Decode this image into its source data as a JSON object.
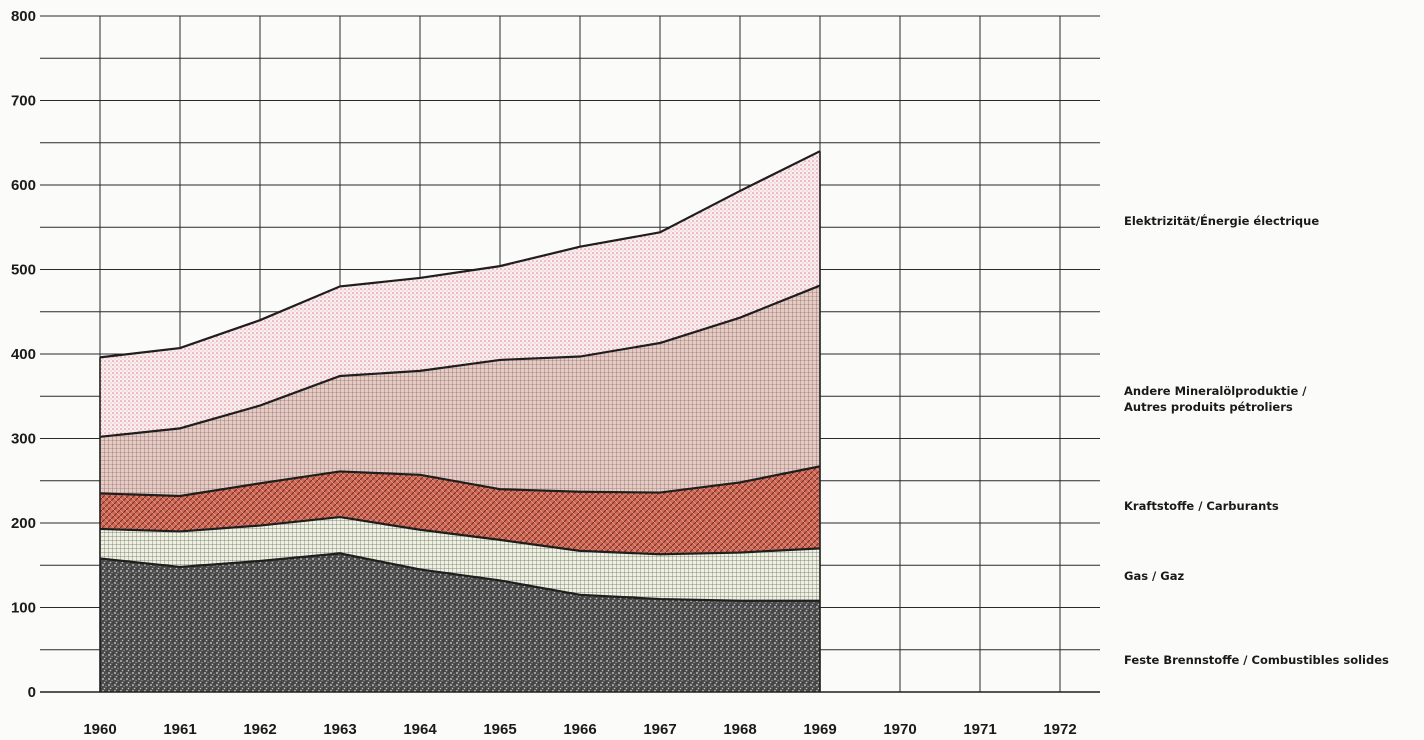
{
  "chart_data": {
    "type": "area",
    "stacked": true,
    "x": [
      1960,
      1961,
      1962,
      1963,
      1964,
      1965,
      1966,
      1967,
      1968,
      1969
    ],
    "x_axis_ticks": [
      "1960",
      "1961",
      "1962",
      "1963",
      "1964",
      "1965",
      "1966",
      "1967",
      "1968",
      "1969",
      "1970",
      "1971",
      "1972"
    ],
    "y_axis_ticks": [
      "0",
      "100",
      "200",
      "300",
      "400",
      "500",
      "600",
      "700",
      "800"
    ],
    "xlim": [
      1959.25,
      1972.5
    ],
    "ylim": [
      0,
      800
    ],
    "grid": true,
    "legend_placement": "right",
    "series": [
      {
        "name": "Feste Brennstoffe / Combustibles solides",
        "values": [
          158,
          148,
          155,
          164,
          145,
          132,
          115,
          110,
          108,
          108
        ],
        "color": "#3a3a3a",
        "pattern": "speckle"
      },
      {
        "name": "Gas / Gaz",
        "values": [
          35,
          42,
          42,
          43,
          47,
          48,
          52,
          53,
          57,
          62
        ],
        "color": "#e8ecd8",
        "pattern": "crosshatch"
      },
      {
        "name": "Kraftstoffe / Carburants",
        "values": [
          42,
          42,
          50,
          54,
          65,
          60,
          70,
          73,
          83,
          97
        ],
        "color": "#c85f4c",
        "pattern": "diagonal-hatch"
      },
      {
        "name": "Andere Mineralölprodukte / Autres produits pétroliers",
        "legend_lines": [
          "Andere Mineralölproduktie /",
          "Autres produits pétroliers"
        ],
        "values": [
          67,
          80,
          92,
          113,
          123,
          153,
          160,
          177,
          195,
          214
        ],
        "color": "#d4b3ad",
        "pattern": "fine-grid"
      },
      {
        "name": "Elektrizität / Énergie électrique",
        "legend_lines": [
          "Elektrizität/Énergie électrique"
        ],
        "values": [
          94,
          95,
          101,
          106,
          110,
          111,
          130,
          131,
          150,
          159
        ],
        "color": "#f5e0e2",
        "pattern": "dots"
      }
    ]
  }
}
